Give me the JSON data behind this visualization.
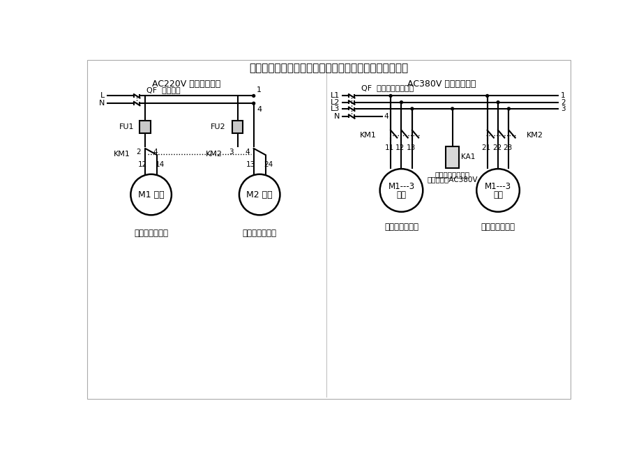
{
  "title": "单级反渗透纯水机电路原理图（反渗透程序控制器控制）",
  "title_fontsize": 11,
  "bg_color": "#ffffff",
  "border_color": "#aaaaaa",
  "line_color": "#000000",
  "left_section_title": "AC220V 主电路原理图",
  "right_section_title": "AC380V 主电路原理图",
  "left_qf_label": "QF  漏电开关",
  "right_qf_label": "QF  三相四线漏电开关",
  "ka1_label": "KA1",
  "ka1_note1": "电源缺相保护控制",
  "ka1_note2": "线圈电压：AC380V",
  "left_bottom_label1": "原水增压泵电机",
  "left_bottom_label2": "多级高压泵电机",
  "right_bottom_label1": "原水增压泵电机",
  "right_bottom_label2": "多级高压泵电机"
}
